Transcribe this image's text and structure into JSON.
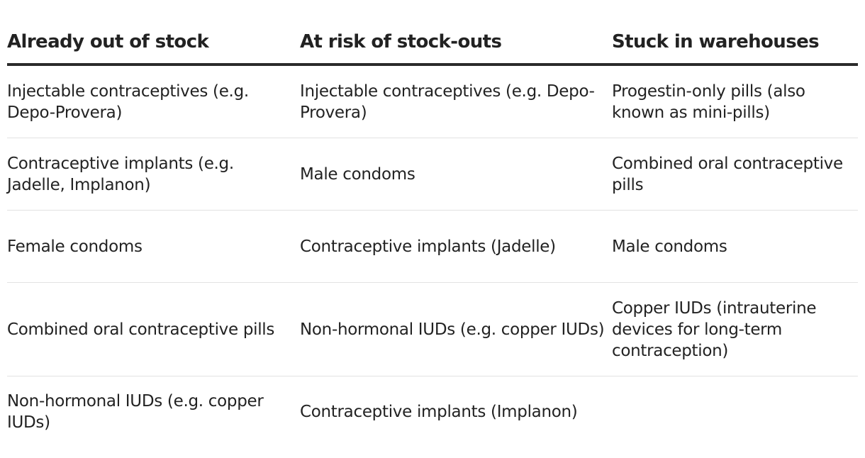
{
  "table": {
    "headers": [
      "Already out of stock",
      "At risk of stock-outs",
      "Stuck in warehouses"
    ],
    "rows": [
      [
        "Injectable contraceptives (e.g. Depo-Provera)",
        "Injectable contraceptives (e.g. Depo-Provera)",
        "Progestin-only pills (also known as mini-pills)"
      ],
      [
        "Contraceptive implants (e.g. Jadelle, Implanon)",
        "Male condoms",
        "Combined oral contraceptive pills"
      ],
      [
        "Female condoms",
        "Contraceptive implants (Jadelle)",
        "Male condoms"
      ],
      [
        "Combined oral contraceptive pills",
        "Non-hormonal IUDs (e.g. copper IUDs)",
        "Copper IUDs (intrauterine devices for long-term contraception)"
      ],
      [
        "Non-hormonal IUDs (e.g. copper IUDs)",
        "Contraceptive implants (Implanon)",
        ""
      ]
    ]
  }
}
